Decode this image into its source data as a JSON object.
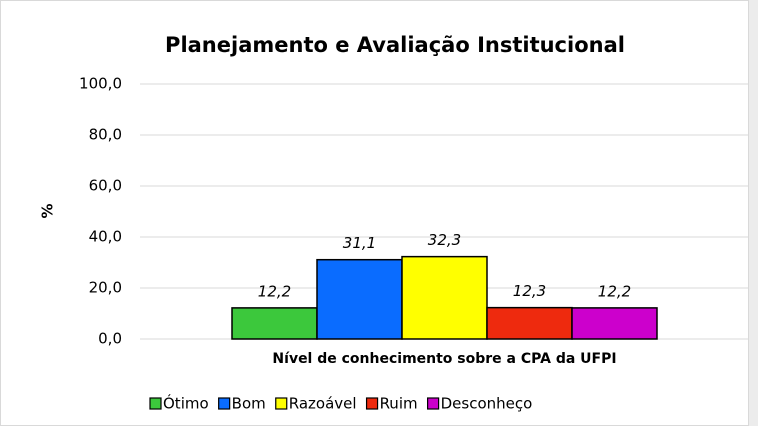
{
  "chart_data": {
    "type": "bar",
    "title": "Planejamento e Avaliação Institucional",
    "y_label": "%",
    "categories": [
      "Nível de conhecimento sobre a CPA da UFPI"
    ],
    "series": [
      {
        "name": "Ótimo",
        "color": "#3cc83c",
        "values": [
          12.2
        ],
        "value_labels": [
          "12,2"
        ]
      },
      {
        "name": "Bom",
        "color": "#0a6cff",
        "values": [
          31.1
        ],
        "value_labels": [
          "31,1"
        ]
      },
      {
        "name": "Razoável",
        "color": "#ffff00",
        "values": [
          32.3
        ],
        "value_labels": [
          "32,3"
        ]
      },
      {
        "name": "Ruim",
        "color": "#ee2a0e",
        "values": [
          12.3
        ],
        "value_labels": [
          "12,3"
        ]
      },
      {
        "name": "Desconheço",
        "color": "#cc00cc",
        "values": [
          12.2
        ],
        "value_labels": [
          "12,2"
        ]
      }
    ],
    "ylim": [
      0,
      100
    ],
    "yticks": [
      {
        "value": 0,
        "label": "0,0"
      },
      {
        "value": 20,
        "label": "20,0"
      },
      {
        "value": 40,
        "label": "40,0"
      },
      {
        "value": 60,
        "label": "60,0"
      },
      {
        "value": 80,
        "label": "80,0"
      },
      {
        "value": 100,
        "label": "100,0"
      }
    ],
    "grid": true,
    "legend": "bottom"
  }
}
